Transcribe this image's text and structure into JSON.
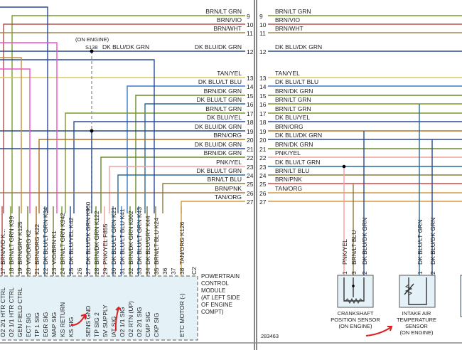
{
  "left_rows": [
    {
      "pin": "9",
      "label": "BRN/LT GRN",
      "color": "#7a9a2a"
    },
    {
      "pin": "10",
      "label": "BRN/VIO",
      "color": "#b05050"
    },
    {
      "pin": "11",
      "label": "BRN/WHT",
      "color": "#a08a50"
    },
    {
      "pin": "12",
      "label": "DK BLU/DK GRN",
      "color": "#2a4a8a"
    },
    {
      "pin": "13",
      "label": "TAN/YEL",
      "color": "#d8c860"
    },
    {
      "pin": "14",
      "label": "DK BLU/LT BLU",
      "color": "#3a7ad0"
    },
    {
      "pin": "15",
      "label": "BRN/DK GRN",
      "color": "#6a8a2a"
    },
    {
      "pin": "16",
      "label": "DK BLU/LT GRN",
      "color": "#2a6a9a"
    },
    {
      "pin": "17",
      "label": "BRN/LT GRN",
      "color": "#7a9a2a"
    },
    {
      "pin": "18",
      "label": "DK BLU/YEL",
      "color": "#2a4a9a"
    },
    {
      "pin": "19",
      "label": "DK BLU/DK GRN",
      "color": "#2a4a8a"
    },
    {
      "pin": "20",
      "label": "BRN/ORG",
      "color": "#b07020"
    },
    {
      "pin": "21",
      "label": "DK BLU/DK GRN",
      "color": "#2a4a8a"
    },
    {
      "pin": "22",
      "label": "BRN/DK GRN",
      "color": "#6a8a2a"
    },
    {
      "pin": "23",
      "label": "PNK/YEL",
      "color": "#f0a0a0"
    },
    {
      "pin": "24",
      "label": "DK BLU/LT GRN",
      "color": "#2a6a9a"
    },
    {
      "pin": "25",
      "label": "BRN/LT BLU",
      "color": "#8a7a40"
    },
    {
      "pin": "26",
      "label": "BRN/PNK",
      "color": "#a07850"
    },
    {
      "pin": "27",
      "label": "TAN/ORG",
      "color": "#d09a40"
    }
  ],
  "right_rows": [
    {
      "pin": "9",
      "label": "BRN/LT GRN",
      "color": "#7a9a2a"
    },
    {
      "pin": "10",
      "label": "BRN/VIO",
      "color": "#b05050"
    },
    {
      "pin": "11",
      "label": "BRN/WHT",
      "color": "#a08a50"
    },
    {
      "pin": "12",
      "label": "DK BLU/DK GRN",
      "color": "#2a4a8a"
    },
    {
      "pin": "13",
      "label": "TAN/YEL",
      "color": "#d8c860"
    },
    {
      "pin": "14",
      "label": "DK BLU/LT BLU",
      "color": "#3a7ad0"
    },
    {
      "pin": "15",
      "label": "BRN/DK GRN",
      "color": "#6a8a2a"
    },
    {
      "pin": "16",
      "label": "BRN/LT GRN",
      "color": "#7a9a2a"
    },
    {
      "pin": "17",
      "label": "BRN/LT GRN",
      "color": "#7a9a2a"
    },
    {
      "pin": "18",
      "label": "DK BLU/YEL",
      "color": "#2a4a9a"
    },
    {
      "pin": "19",
      "label": "BRN/ORG",
      "color": "#b07020"
    },
    {
      "pin": "20",
      "label": "DK BLU/DK GRN",
      "color": "#2a4a8a"
    },
    {
      "pin": "21",
      "label": "BRN/DK GRN",
      "color": "#6a8a2a"
    },
    {
      "pin": "22",
      "label": "PNK/YEL",
      "color": "#f0a0a0"
    },
    {
      "pin": "23",
      "label": "DK BLU/LT GRN",
      "color": "#2a6a9a"
    },
    {
      "pin": "24",
      "label": "BRN/LT BLU",
      "color": "#8a7a40"
    },
    {
      "pin": "25",
      "label": "BRN/PNK",
      "color": "#e04040"
    },
    {
      "pin": "26",
      "label": "TAN/ORG",
      "color": "#d09a40"
    },
    {
      "pin": "27",
      "label": "",
      "color": "#d09a40"
    }
  ],
  "splice": {
    "note": "(ON ENGINE)",
    "id": "S138",
    "label": "DK BLU/DK GRN"
  },
  "pcm_pins": [
    {
      "pin": "17",
      "wire": "BRN/VIO",
      "circuit": "K...",
      "func": "O2 2/1 HTR CTRL"
    },
    {
      "pin": "18",
      "wire": "BRN/LT GRN",
      "circuit": "K99",
      "func": "O2 1/1 HTR CTRL"
    },
    {
      "pin": "19",
      "wire": "BRN/GRY",
      "circuit": "K125",
      "func": "GEN FIELD CTRL"
    },
    {
      "pin": "20",
      "wire": "VIO/ORG",
      "circuit": "K2",
      "func": "ECT SIG"
    },
    {
      "pin": "21",
      "wire": "BRN/ORG",
      "circuit": "K22",
      "func": "TP 1 SIG"
    },
    {
      "pin": "22",
      "wire": "DK BLU/LT GRN",
      "circuit": "K34",
      "func": "EGR SIG"
    },
    {
      "pin": "23",
      "wire": "VIO/BRN",
      "circuit": "K1",
      "func": "MAP SIG"
    },
    {
      "pin": "24",
      "wire": "BRN/LT GRN",
      "circuit": "K942",
      "func": "KS RETURN"
    },
    {
      "pin": "25",
      "wire": "DK BLU/YEL",
      "circuit": "K42",
      "func": "KS SIG"
    },
    {
      "pin": "26",
      "wire": "",
      "circuit": "",
      "func": ""
    },
    {
      "pin": "27",
      "wire": "DK BLU/DK GRN",
      "circuit": "K900",
      "func": "SENS GND"
    },
    {
      "pin": "28",
      "wire": "BRN/DK GRN",
      "circuit": "K122",
      "func": "TP SIG 2"
    },
    {
      "pin": "29",
      "wire": "PNK/YEL",
      "circuit": "F855",
      "func": "5V SUPPLY"
    },
    {
      "pin": "30",
      "wire": "DK BLU/LT GRN",
      "circuit": "K21",
      "func": "IAT SIG"
    },
    {
      "pin": "31",
      "wire": "DK BLU/LT BLU",
      "circuit": "K41",
      "func": "O2 1/1 SIG"
    },
    {
      "pin": "32",
      "wire": "BRN/DK GRN",
      "circuit": "K902",
      "func": "O2 RTN (UP)"
    },
    {
      "pin": "33",
      "wire": "DK BLU/LT GRN",
      "circuit": "K43",
      "func": "O2 2/1 SIG"
    },
    {
      "pin": "34",
      "wire": "DK BLU/GRY",
      "circuit": "K44",
      "func": "CMP SIG"
    },
    {
      "pin": "35",
      "wire": "BRN/LT BLU",
      "circuit": "K24",
      "func": "CKP SIG"
    },
    {
      "pin": "36",
      "wire": "",
      "circuit": "",
      "func": ""
    },
    {
      "pin": "37",
      "wire": "",
      "circuit": "",
      "func": ""
    },
    {
      "pin": "38",
      "wire": "TAN/ORG",
      "circuit": "K126",
      "func": "ETC MOTOR (-)"
    }
  ],
  "connector": "C2",
  "pcm_label": [
    "POWERTRAIN",
    "CONTROL",
    "MODULE",
    "(AT LEFT SIDE",
    "OF ENGINE",
    "COMPT)"
  ],
  "ckp": {
    "name": [
      "CRANKSHAFT",
      "POSITION SENSOR",
      "(ON ENGINE)"
    ],
    "pins": [
      {
        "pin": "1",
        "wire": "PNK/YEL"
      },
      {
        "pin": "3",
        "wire": "BRN/LT BLU"
      },
      {
        "pin": "2",
        "wire": "DK BLU/DK GRN"
      }
    ]
  },
  "iat": {
    "name": [
      "INTAKE AIR",
      "TEMPERATURE",
      "SENSOR",
      "(ON ENGINE)"
    ],
    "pins": [
      {
        "pin": "1",
        "wire": "DK BLU/LT GRN"
      },
      {
        "pin": "2",
        "wire": "DK BLU/DK GRN"
      }
    ]
  },
  "figure_code": "283463"
}
